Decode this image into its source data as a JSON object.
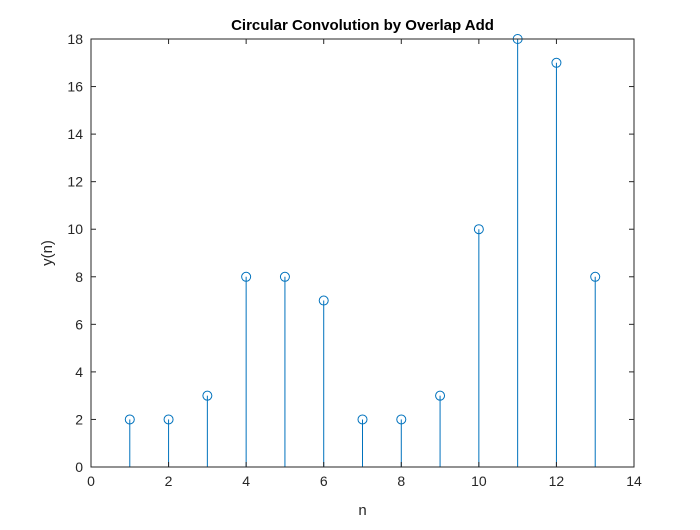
{
  "chart_data": {
    "type": "stem",
    "title": "Circular Convolution by Overlap Add",
    "xlabel": "n",
    "ylabel": "y(n)",
    "xlim": [
      0,
      14
    ],
    "ylim": [
      0,
      18
    ],
    "xticks": [
      0,
      2,
      4,
      6,
      8,
      10,
      12,
      14
    ],
    "yticks": [
      0,
      2,
      4,
      6,
      8,
      10,
      12,
      14,
      16,
      18
    ],
    "grid": false,
    "series": [
      {
        "x": [
          1,
          2,
          3,
          4,
          5,
          6,
          7,
          8,
          9,
          10,
          11,
          12,
          13
        ],
        "y": [
          2,
          2,
          3,
          8,
          8,
          7,
          2,
          2,
          3,
          10,
          18,
          17,
          8
        ]
      }
    ],
    "colors": {
      "stem": "#0072BD",
      "axes": "#262626",
      "background": "#ffffff"
    }
  }
}
